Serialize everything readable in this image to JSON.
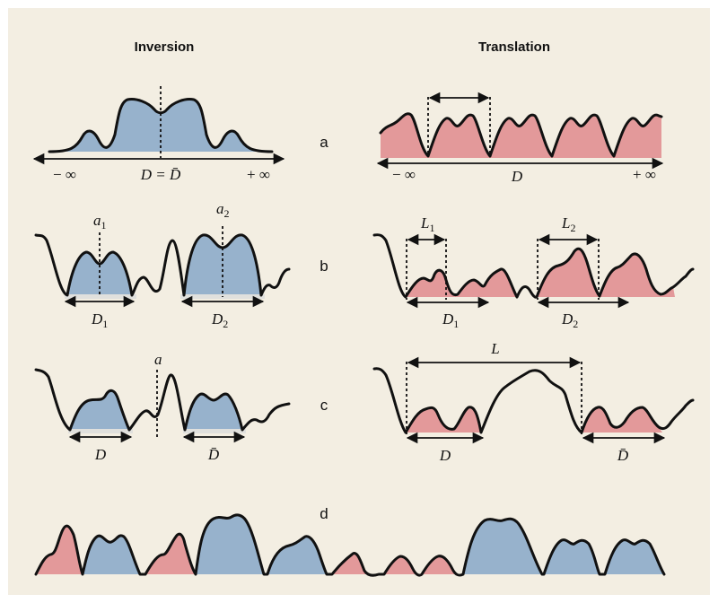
{
  "headings": {
    "inversion": "Inversion",
    "translation": "Translation"
  },
  "panels": {
    "a": "a",
    "b": "b",
    "c": "c",
    "d": "d"
  },
  "labels": {
    "minus_inf": "− ∞",
    "plus_inf": "+ ∞",
    "D": "D",
    "D_eq_Dbar": "D = D̄",
    "D_bar": "D̄",
    "D1": "D",
    "D2": "D",
    "sub1": "1",
    "sub2": "2",
    "a": "a",
    "L": "L"
  },
  "colors": {
    "background": "#f3eee2",
    "blue_fill": "#97b2cc",
    "red_fill": "#e3999a",
    "line": "#111111"
  }
}
